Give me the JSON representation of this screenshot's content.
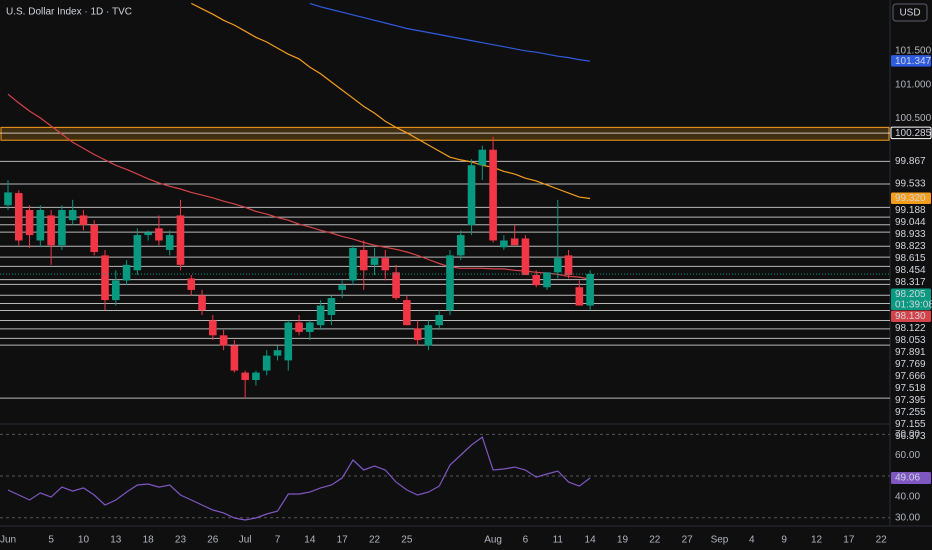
{
  "chart_data": [
    {
      "type": "candlestick",
      "title": "U.S. Dollar Index · 1D · TVC",
      "currency": "USD",
      "countdown": "01:39:08",
      "categories": [
        "Jun",
        null,
        null,
        null,
        "5",
        null,
        null,
        "10",
        null,
        null,
        "13",
        null,
        null,
        "18",
        null,
        null,
        "23",
        null,
        null,
        "26",
        null,
        null,
        "Jul",
        null,
        null,
        "7",
        null,
        null,
        "14",
        null,
        null,
        "17",
        null,
        null,
        "22",
        null,
        null,
        "25",
        null,
        null,
        null,
        null,
        null,
        null,
        null,
        "Aug",
        null,
        null,
        "6",
        null,
        null,
        "11",
        null,
        null,
        "14",
        null,
        null,
        "19",
        null,
        null,
        "22",
        null,
        null,
        "27",
        null,
        null,
        "Sep",
        null,
        null,
        "4",
        null,
        null,
        "9",
        null,
        null,
        "12",
        null,
        null,
        "17",
        null,
        null,
        "22"
      ],
      "open": [
        99.22,
        99.4,
        99.15,
        98.7,
        99.07,
        98.63,
        99.0,
        99.07,
        98.93,
        98.48,
        97.82,
        98.11,
        98.26,
        98.78,
        98.88,
        98.56,
        99.07,
        98.14,
        97.89,
        97.52,
        97.3,
        97.15,
        96.75,
        96.64,
        96.78,
        97.0,
        96.93,
        97.49,
        97.35,
        97.45,
        97.6,
        97.97,
        98.11,
        98.56,
        98.34,
        98.44,
        98.23,
        97.82,
        97.4,
        97.15,
        97.45,
        97.67,
        98.48,
        98.93,
        99.81,
        100.04,
        98.6,
        98.73,
        98.73,
        98.19,
        98.01,
        98.23,
        98.48,
        98.01,
        97.74,
        null,
        null,
        null,
        null,
        null,
        null,
        null,
        null,
        null,
        null,
        null,
        null,
        null,
        null,
        null,
        null,
        null,
        null,
        null,
        null,
        null,
        null,
        null,
        null,
        null,
        null,
        null
      ],
      "high": [
        99.59,
        99.44,
        99.22,
        99.22,
        99.15,
        99.22,
        99.3,
        99.15,
        99.0,
        98.56,
        98.26,
        98.41,
        98.88,
        98.85,
        99.07,
        98.85,
        99.3,
        98.19,
        97.97,
        97.6,
        97.38,
        97.23,
        96.78,
        96.78,
        97.08,
        97.15,
        97.52,
        97.6,
        97.52,
        97.82,
        97.89,
        98.11,
        98.63,
        98.7,
        98.59,
        98.56,
        98.34,
        97.89,
        97.52,
        97.52,
        97.67,
        98.56,
        98.85,
        99.9,
        100.1,
        100.23,
        98.78,
        98.93,
        98.78,
        98.26,
        98.23,
        99.3,
        98.56,
        98.11,
        98.26,
        null,
        null,
        null,
        null,
        null,
        null,
        null,
        null,
        null,
        null,
        null,
        null,
        null,
        null,
        null,
        null,
        null,
        null,
        null,
        null,
        null,
        null,
        null,
        null,
        null,
        null,
        null
      ],
      "low": [
        99.15,
        98.63,
        98.59,
        98.6,
        98.34,
        98.56,
        98.93,
        98.85,
        98.48,
        97.67,
        97.74,
        98.04,
        98.19,
        98.7,
        98.63,
        98.48,
        98.26,
        97.89,
        97.6,
        97.23,
        97.08,
        96.75,
        96.37,
        96.56,
        96.71,
        96.93,
        96.78,
        97.3,
        97.23,
        97.38,
        97.45,
        97.85,
        98.04,
        97.97,
        98.19,
        98.11,
        97.82,
        97.45,
        97.15,
        97.08,
        97.38,
        97.6,
        98.41,
        98.78,
        99.59,
        98.67,
        98.56,
        98.63,
        98.19,
        98.01,
        97.97,
        98.14,
        98.14,
        97.74,
        97.67,
        null,
        null,
        null,
        null,
        null,
        null,
        null,
        null,
        null,
        null,
        null,
        null,
        null,
        null,
        null,
        null,
        null,
        null,
        null,
        null,
        null,
        null,
        null,
        null,
        null,
        null,
        null
      ],
      "close": [
        99.41,
        98.7,
        98.78,
        99.15,
        98.63,
        99.15,
        99.15,
        98.93,
        98.53,
        97.82,
        98.11,
        98.34,
        98.78,
        98.82,
        98.7,
        98.78,
        98.34,
        97.97,
        97.67,
        97.3,
        97.15,
        96.78,
        96.64,
        96.75,
        97.0,
        97.08,
        97.49,
        97.35,
        97.49,
        97.74,
        97.85,
        98.04,
        98.59,
        98.26,
        98.44,
        98.26,
        97.85,
        97.45,
        97.23,
        97.45,
        97.6,
        98.48,
        98.78,
        99.81,
        100.04,
        98.7,
        98.7,
        98.63,
        98.19,
        98.04,
        98.23,
        98.44,
        98.19,
        97.74,
        98.205,
        null,
        null,
        null,
        null,
        null,
        null,
        null,
        null,
        null,
        null,
        null,
        null,
        null,
        null,
        null,
        null,
        null,
        null,
        null,
        null,
        null,
        null,
        null,
        null,
        null,
        null,
        null
      ],
      "up_color": "#089981",
      "down_color": "#f23645",
      "series": [
        {
          "color": "#2f5be0",
          "values": [
            null,
            null,
            null,
            null,
            null,
            null,
            null,
            null,
            null,
            null,
            null,
            null,
            null,
            null,
            null,
            null,
            null,
            null,
            null,
            null,
            null,
            null,
            null,
            null,
            null,
            null,
            null,
            null,
            102.2,
            102.15,
            102.11,
            102.07,
            102.03,
            101.99,
            101.95,
            101.91,
            101.87,
            101.83,
            101.8,
            101.77,
            101.74,
            101.71,
            101.68,
            101.65,
            101.62,
            101.59,
            101.56,
            101.53,
            101.5,
            101.48,
            101.45,
            101.42,
            101.4,
            101.37,
            101.347,
            null,
            null,
            null,
            null,
            null,
            null,
            null,
            null,
            null,
            null,
            null,
            null,
            null,
            null,
            null,
            null,
            null,
            null,
            null,
            null,
            null,
            null,
            null,
            null,
            null,
            null,
            null
          ]
        },
        {
          "color": "#f59e1b",
          "last_value_label": "99.320",
          "values": [
            null,
            null,
            null,
            null,
            null,
            null,
            null,
            null,
            null,
            null,
            null,
            null,
            null,
            null,
            null,
            null,
            null,
            102.2,
            102.12,
            102.04,
            101.95,
            101.88,
            101.79,
            101.7,
            101.63,
            101.54,
            101.45,
            101.38,
            101.26,
            101.16,
            101.04,
            100.92,
            100.8,
            100.68,
            100.58,
            100.46,
            100.37,
            100.29,
            100.2,
            100.11,
            100.02,
            99.93,
            99.89,
            99.86,
            99.81,
            99.78,
            99.72,
            99.68,
            99.62,
            99.58,
            99.52,
            99.46,
            99.4,
            99.34,
            99.32,
            null,
            null,
            null,
            null,
            null,
            null,
            null,
            null,
            null,
            null,
            null,
            null,
            null,
            null,
            null,
            null,
            null,
            null,
            null,
            null,
            null,
            null,
            null,
            null,
            null,
            null,
            null
          ]
        },
        {
          "color": "#d4434a",
          "last_value_label": "98.130",
          "values": [
            100.86,
            100.73,
            100.61,
            100.51,
            100.39,
            100.27,
            100.15,
            100.06,
            99.97,
            99.89,
            99.81,
            99.75,
            99.68,
            99.61,
            99.55,
            99.5,
            99.46,
            99.41,
            99.37,
            99.33,
            99.28,
            99.24,
            99.19,
            99.13,
            99.09,
            99.04,
            99.0,
            98.94,
            98.9,
            98.85,
            98.81,
            98.76,
            98.72,
            98.67,
            98.63,
            98.6,
            98.57,
            98.53,
            98.48,
            98.42,
            98.36,
            98.31,
            98.29,
            98.29,
            98.29,
            98.28,
            98.28,
            98.26,
            98.25,
            98.23,
            98.22,
            98.2,
            98.17,
            98.16,
            98.13,
            null,
            null,
            null,
            null,
            null,
            null,
            null,
            null,
            null,
            null,
            null,
            null,
            null,
            null,
            null,
            null,
            null,
            null,
            null,
            null,
            null,
            null,
            null,
            null,
            null,
            null,
            null
          ]
        }
      ],
      "zone": {
        "top": 100.37,
        "bottom": 100.18,
        "color": "#f59e1b"
      },
      "levels": [
        100.285,
        99.867,
        99.533,
        99.188,
        99.044,
        98.933,
        98.823,
        98.615,
        98.454,
        98.317,
        98.122,
        98.053,
        97.891,
        97.769,
        97.666,
        97.518,
        97.395,
        97.255,
        97.155,
        96.373
      ],
      "ylim": [
        96.05,
        102.25
      ],
      "yticks": [
        {
          "value": 101.5,
          "label": "101.500"
        },
        {
          "value": 101,
          "label": "101.000"
        },
        {
          "value": 100.5,
          "label": "100.500"
        }
      ]
    },
    {
      "type": "line",
      "color": "#7e57c2",
      "values": [
        43.3,
        40.9,
        38.5,
        41.9,
        39.9,
        44.7,
        42.8,
        44.3,
        40.9,
        36.1,
        38.5,
        42.3,
        45.7,
        46.2,
        44.7,
        45.7,
        40.9,
        38.5,
        36.1,
        33.7,
        32.3,
        29.9,
        28.9,
        29.9,
        31.8,
        33.2,
        41.4,
        41.4,
        42.3,
        44.3,
        45.7,
        49.1,
        57.7,
        52.9,
        54.8,
        52.9,
        47.1,
        43.3,
        40.9,
        42.3,
        45.2,
        55.3,
        60.1,
        64.9,
        68.7,
        52.9,
        53.4,
        54.3,
        52.9,
        49.5,
        51.0,
        52.4,
        47.1,
        45.2,
        49.06,
        null,
        null,
        null,
        null,
        null,
        null,
        null,
        null,
        null,
        null,
        null,
        null,
        null,
        null,
        null,
        null,
        null,
        null,
        null,
        null,
        null,
        null,
        null,
        null,
        null,
        null,
        null
      ],
      "ylim": [
        27,
        74
      ],
      "yticks": [
        {
          "value": 70,
          "label": "70.00"
        },
        {
          "value": 60,
          "label": "60.00"
        },
        {
          "value": 40,
          "label": "40.00"
        },
        {
          "value": 30,
          "label": "30.00"
        }
      ],
      "bands": [
        70,
        50,
        30
      ]
    }
  ]
}
